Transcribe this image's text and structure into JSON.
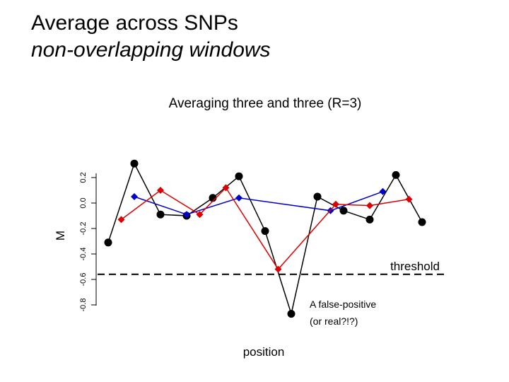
{
  "slide": {
    "title_line1": "Average across SNPs",
    "title_line2": "non-overlapping windows"
  },
  "chart_data": {
    "type": "line",
    "title": "Averaging three and three (R=3)",
    "xlabel": "position",
    "ylabel": "M",
    "ylim": [
      -0.8,
      0.2
    ],
    "yticks": [
      -0.8,
      -0.6,
      -0.4,
      -0.2,
      0.0,
      0.2
    ],
    "ytick_labels": [
      "-0.8",
      "-0.6",
      "-0.4",
      "-0.2",
      "0.0",
      "0.2"
    ],
    "grid": false,
    "series": [
      {
        "role": "raw",
        "color": "#000000",
        "marker": "circle",
        "points": [
          {
            "x": 1,
            "y": -0.31
          },
          {
            "x": 2,
            "y": 0.31
          },
          {
            "x": 3,
            "y": -0.09
          },
          {
            "x": 4,
            "y": -0.1
          },
          {
            "x": 5,
            "y": 0.04
          },
          {
            "x": 6,
            "y": 0.21
          },
          {
            "x": 7,
            "y": -0.22
          },
          {
            "x": 8,
            "y": -0.87
          },
          {
            "x": 9,
            "y": 0.05
          },
          {
            "x": 10,
            "y": -0.06
          },
          {
            "x": 11,
            "y": -0.13
          },
          {
            "x": 12,
            "y": 0.22
          },
          {
            "x": 13,
            "y": -0.15
          }
        ]
      },
      {
        "role": "average-R3-blue",
        "color": "#0000cc",
        "marker": "diamond",
        "points": [
          {
            "x": 2,
            "y": 0.05
          },
          {
            "x": 4,
            "y": -0.09
          },
          {
            "x": 6,
            "y": 0.04
          },
          {
            "x": 9.5,
            "y": -0.06
          },
          {
            "x": 11.5,
            "y": 0.09
          }
        ]
      },
      {
        "role": "average-R3-red",
        "color": "#dd0000",
        "marker": "diamond",
        "points": [
          {
            "x": 1.5,
            "y": -0.13
          },
          {
            "x": 3,
            "y": 0.1
          },
          {
            "x": 4.5,
            "y": -0.09
          },
          {
            "x": 5.5,
            "y": 0.12
          },
          {
            "x": 7.5,
            "y": -0.52
          },
          {
            "x": 9.7,
            "y": -0.01
          },
          {
            "x": 11,
            "y": -0.02
          },
          {
            "x": 12.5,
            "y": 0.03
          }
        ]
      }
    ],
    "threshold": {
      "y": -0.56,
      "label": "threshold",
      "color": "#000000",
      "style": "dashed"
    },
    "annotation": {
      "line1": "A false-positive",
      "line2": "(or real?!?)"
    }
  }
}
